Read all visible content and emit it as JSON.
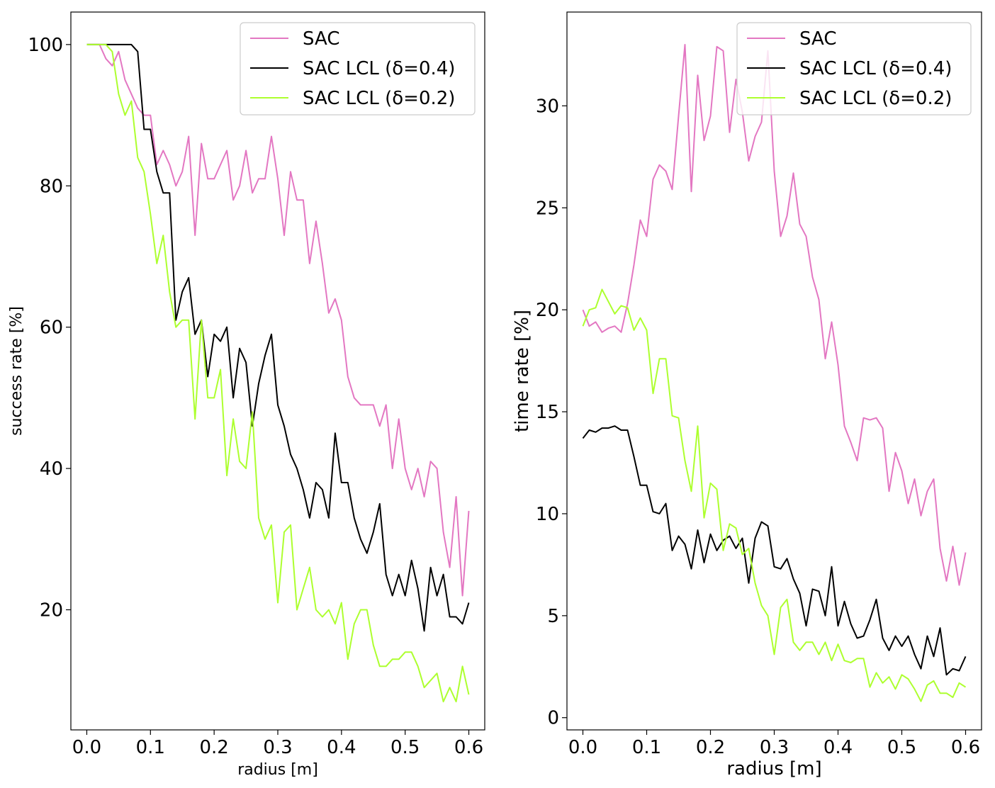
{
  "chart_data": [
    {
      "type": "line",
      "title": "",
      "xlabel": "radius [m]",
      "ylabel": "success rate [%]",
      "xlim": [
        -0.025,
        0.625
      ],
      "ylim": [
        3,
        104.6
      ],
      "xticks": [
        0.0,
        0.1,
        0.2,
        0.3,
        0.4,
        0.5,
        0.6
      ],
      "xtick_labels": [
        "0.0",
        "0.1",
        "0.2",
        "0.3",
        "0.4",
        "0.5",
        "0.6"
      ],
      "yticks": [
        20,
        40,
        60,
        80,
        100
      ],
      "ytick_labels": [
        "20",
        "40",
        "60",
        "80",
        "100"
      ],
      "legend": "top-right",
      "grid": false,
      "x": [
        0.0,
        0.01,
        0.02,
        0.03,
        0.04,
        0.05,
        0.06,
        0.07,
        0.08,
        0.09,
        0.1,
        0.11,
        0.12,
        0.13,
        0.14,
        0.15,
        0.16,
        0.17,
        0.18,
        0.19,
        0.2,
        0.21,
        0.22,
        0.23,
        0.24,
        0.25,
        0.26,
        0.27,
        0.28,
        0.29,
        0.3,
        0.31,
        0.32,
        0.33,
        0.34,
        0.35,
        0.36,
        0.37,
        0.38,
        0.39,
        0.4,
        0.41,
        0.42,
        0.43,
        0.44,
        0.45,
        0.46,
        0.47,
        0.48,
        0.49,
        0.5,
        0.51,
        0.52,
        0.53,
        0.54,
        0.55,
        0.56,
        0.57,
        0.58,
        0.59,
        0.6
      ],
      "series": [
        {
          "name": "SAC",
          "color": "#e377c2",
          "values": [
            100,
            100,
            100,
            98,
            97,
            99,
            95,
            93,
            91,
            90,
            90,
            83,
            85,
            83,
            80,
            82,
            87,
            73,
            86,
            81,
            81,
            83,
            85,
            78,
            80,
            85,
            79,
            81,
            81,
            87,
            81,
            73,
            82,
            78,
            78,
            69,
            75,
            69,
            62,
            64,
            61,
            53,
            50,
            49,
            49,
            49,
            46,
            49,
            40,
            47,
            40,
            37,
            40,
            36,
            41,
            40,
            31,
            26,
            36,
            22,
            34
          ]
        },
        {
          "name": "SAC LCL (δ=0.4)",
          "color": "#000000",
          "values": [
            100,
            100,
            100,
            100,
            100,
            100,
            100,
            100,
            99,
            88,
            88,
            82,
            79,
            79,
            61,
            65,
            67,
            59,
            61,
            53,
            59,
            58,
            60,
            50,
            57,
            55,
            46,
            52,
            56,
            59,
            49,
            46,
            42,
            40,
            37,
            33,
            38,
            37,
            33,
            45,
            38,
            38,
            33,
            30,
            28,
            31,
            35,
            25,
            22,
            25,
            22,
            27,
            23,
            17,
            26,
            22,
            25,
            19,
            19,
            18,
            21
          ]
        },
        {
          "name": "SAC LCL (δ=0.2)",
          "color": "#adff2f",
          "values": [
            100,
            100,
            100,
            100,
            99,
            93,
            90,
            92,
            84,
            82,
            76,
            69,
            73,
            65,
            60,
            61,
            61,
            47,
            61,
            50,
            50,
            54,
            39,
            47,
            41,
            40,
            48,
            33,
            30,
            32,
            21,
            31,
            32,
            20,
            23,
            26,
            20,
            19,
            20,
            18,
            21,
            13,
            18,
            20,
            20,
            15,
            12,
            12,
            13,
            13,
            14,
            14,
            12,
            9,
            10,
            11,
            7,
            9,
            7,
            12,
            8
          ]
        }
      ]
    },
    {
      "type": "line",
      "title": "",
      "xlabel": "radius [m]",
      "ylabel": "time rate [%]",
      "xlim": [
        -0.025,
        0.625
      ],
      "ylim": [
        -0.6,
        34.6
      ],
      "xticks": [
        0.0,
        0.1,
        0.2,
        0.3,
        0.4,
        0.5,
        0.6
      ],
      "xtick_labels": [
        "0.0",
        "0.1",
        "0.2",
        "0.3",
        "0.4",
        "0.5",
        "0.6"
      ],
      "yticks": [
        0,
        5,
        10,
        15,
        20,
        25,
        30
      ],
      "ytick_labels": [
        "0",
        "5",
        "10",
        "15",
        "20",
        "25",
        "30"
      ],
      "legend": "top-right",
      "grid": false,
      "x": [
        0.0,
        0.01,
        0.02,
        0.03,
        0.04,
        0.05,
        0.06,
        0.07,
        0.08,
        0.09,
        0.1,
        0.11,
        0.12,
        0.13,
        0.14,
        0.15,
        0.16,
        0.17,
        0.18,
        0.19,
        0.2,
        0.21,
        0.22,
        0.23,
        0.24,
        0.25,
        0.26,
        0.27,
        0.28,
        0.29,
        0.3,
        0.31,
        0.32,
        0.33,
        0.34,
        0.35,
        0.36,
        0.37,
        0.38,
        0.39,
        0.4,
        0.41,
        0.42,
        0.43,
        0.44,
        0.45,
        0.46,
        0.47,
        0.48,
        0.49,
        0.5,
        0.51,
        0.52,
        0.53,
        0.54,
        0.55,
        0.56,
        0.57,
        0.58,
        0.59,
        0.6
      ],
      "series": [
        {
          "name": "SAC",
          "color": "#e377c2",
          "values": [
            20.0,
            19.2,
            19.4,
            18.9,
            19.1,
            19.2,
            18.9,
            20.3,
            22.2,
            24.4,
            23.6,
            26.4,
            27.1,
            26.8,
            25.9,
            29.5,
            33.0,
            25.8,
            31.5,
            28.3,
            29.5,
            32.9,
            32.7,
            28.7,
            31.3,
            29.7,
            27.3,
            28.5,
            29.2,
            32.7,
            26.8,
            23.6,
            24.6,
            26.7,
            24.2,
            23.6,
            21.6,
            20.5,
            17.6,
            19.4,
            17.3,
            14.3,
            13.5,
            12.6,
            14.7,
            14.6,
            14.7,
            14.2,
            11.1,
            13.0,
            12.1,
            10.5,
            11.7,
            9.9,
            11.1,
            11.7,
            8.3,
            6.7,
            8.4,
            6.5,
            8.1
          ]
        },
        {
          "name": "SAC LCL (δ=0.4)",
          "color": "#000000",
          "values": [
            13.7,
            14.1,
            14.0,
            14.2,
            14.2,
            14.3,
            14.1,
            14.1,
            12.8,
            11.4,
            11.4,
            10.1,
            10.0,
            10.5,
            8.2,
            8.9,
            8.5,
            7.3,
            9.2,
            7.6,
            9.0,
            8.2,
            8.7,
            8.9,
            8.3,
            8.8,
            6.6,
            8.8,
            9.6,
            9.4,
            7.4,
            7.3,
            7.8,
            6.8,
            6.1,
            4.5,
            6.3,
            6.2,
            5.0,
            7.4,
            4.5,
            5.7,
            4.6,
            3.9,
            4.0,
            4.8,
            5.8,
            3.9,
            3.3,
            4.0,
            3.5,
            4.0,
            3.1,
            2.4,
            4.0,
            3.0,
            4.4,
            2.1,
            2.4,
            2.3,
            3.0
          ]
        },
        {
          "name": "SAC LCL (δ=0.2)",
          "color": "#adff2f",
          "values": [
            19.2,
            20.0,
            20.1,
            21.0,
            20.4,
            19.8,
            20.2,
            20.1,
            19.0,
            19.6,
            19.0,
            15.9,
            17.6,
            17.6,
            14.8,
            14.7,
            12.6,
            11.1,
            14.3,
            9.8,
            11.5,
            11.2,
            8.2,
            9.5,
            9.3,
            8.0,
            8.3,
            6.6,
            5.5,
            5.0,
            3.1,
            5.4,
            5.8,
            3.7,
            3.3,
            3.7,
            3.7,
            3.1,
            3.7,
            2.8,
            3.6,
            2.8,
            2.7,
            2.9,
            2.9,
            1.5,
            2.2,
            1.7,
            2.0,
            1.4,
            2.1,
            1.9,
            1.4,
            0.8,
            1.6,
            1.8,
            1.2,
            1.2,
            1.0,
            1.7,
            1.5
          ]
        }
      ]
    }
  ]
}
